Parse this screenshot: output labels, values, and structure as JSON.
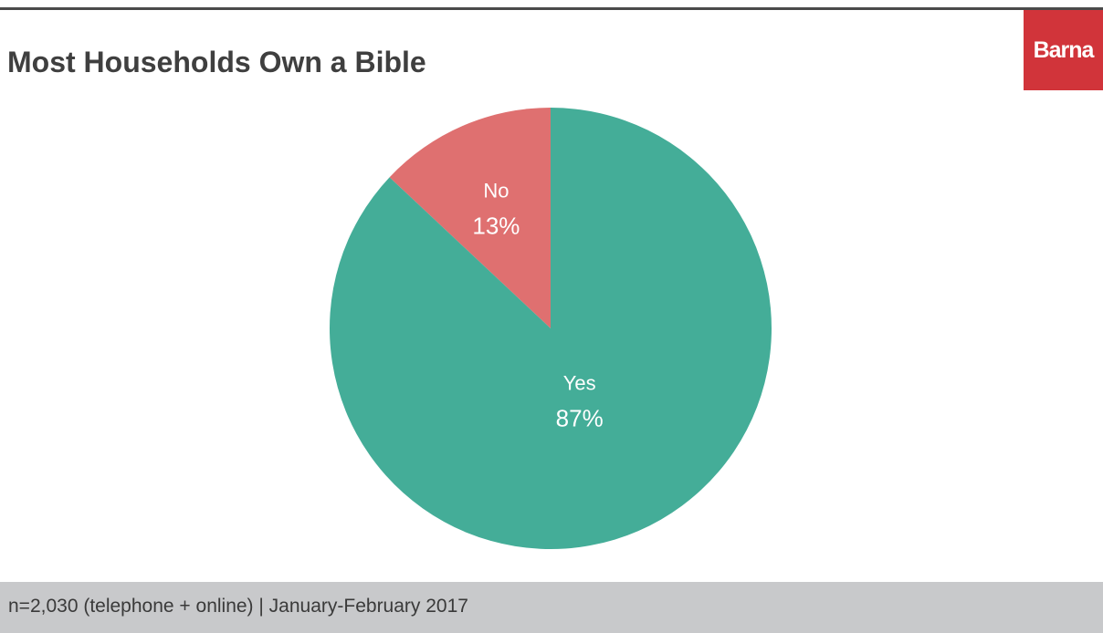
{
  "title": "Most Households Own a Bible",
  "brand": {
    "name": "Barna",
    "color": "#d1343a"
  },
  "footer": {
    "note": "n=2,030 (telephone + online) | January-February 2017"
  },
  "chart_data": {
    "type": "pie",
    "title": "Most Households Own a Bible",
    "legend": "none",
    "slices": [
      {
        "label": "No",
        "value": 13,
        "display": "13%",
        "color": "#df7070"
      },
      {
        "label": "Yes",
        "value": 87,
        "display": "87%",
        "color": "#44ad98"
      }
    ]
  }
}
